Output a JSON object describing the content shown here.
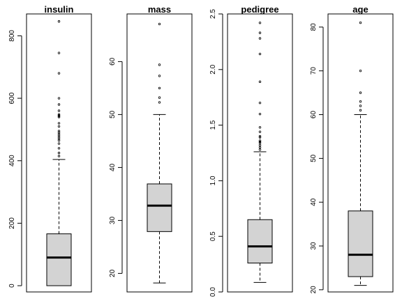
{
  "chart_data": [
    {
      "type": "boxplot",
      "title": "insulin",
      "ylim": [
        -20,
        870
      ],
      "yticks": [
        0,
        200,
        400,
        600,
        800
      ],
      "box": {
        "min": 0,
        "q1": 0,
        "median": 90,
        "q3": 166,
        "whisker_low": 0,
        "whisker_high": 404
      },
      "outliers": [
        415,
        425,
        440,
        455,
        465,
        470,
        475,
        480,
        485,
        490,
        495,
        510,
        520,
        540,
        543,
        545,
        548,
        560,
        580,
        600,
        680,
        745,
        846
      ]
    },
    {
      "type": "boxplot",
      "title": "mass",
      "ylim": [
        16.5,
        69
      ],
      "yticks": [
        20,
        30,
        40,
        50,
        60
      ],
      "box": {
        "q1": 27.9,
        "median": 32.8,
        "q3": 36.9,
        "whisker_low": 18.2,
        "whisker_high": 50.0
      },
      "outliers": [
        52.3,
        53.2,
        55.0,
        57.3,
        59.4,
        67.1
      ]
    },
    {
      "type": "boxplot",
      "title": "pedigree",
      "ylim": [
        0,
        2.5
      ],
      "yticks": [
        0.0,
        0.5,
        1.0,
        1.5,
        2.0,
        2.5
      ],
      "box": {
        "q1": 0.26,
        "median": 0.41,
        "q3": 0.65,
        "whisker_low": 0.085,
        "whisker_high": 1.26
      },
      "outliers": [
        1.28,
        1.3,
        1.32,
        1.34,
        1.35,
        1.36,
        1.39,
        1.4,
        1.44,
        1.48,
        1.6,
        1.7,
        1.89,
        2.14,
        2.28,
        2.33,
        2.42
      ]
    },
    {
      "type": "boxplot",
      "title": "age",
      "ylim": [
        19.5,
        83
      ],
      "yticks": [
        20,
        30,
        40,
        50,
        60,
        70,
        80
      ],
      "box": {
        "q1": 23,
        "median": 28,
        "q3": 38,
        "whisker_low": 21,
        "whisker_high": 60
      },
      "outliers": [
        61,
        62,
        63,
        65,
        70,
        81
      ]
    }
  ]
}
